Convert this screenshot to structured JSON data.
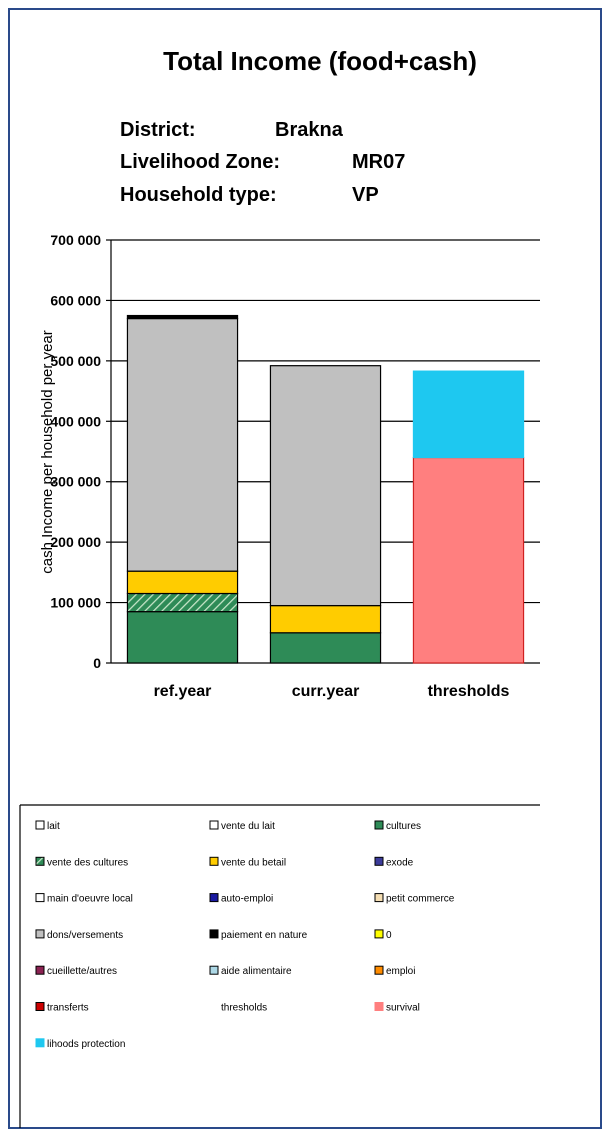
{
  "chart_data": {
    "type": "bar",
    "stacked": true,
    "title": "Total Income (food+cash)",
    "info": [
      {
        "label": "District:",
        "value": "Brakna"
      },
      {
        "label": "Livelihood Zone:",
        "value": "MR07"
      },
      {
        "label": "Household type:",
        "value": "VP"
      }
    ],
    "ylabel": "cash Income per household per year",
    "ylim": [
      0,
      700000
    ],
    "yticks": [
      0,
      100000,
      200000,
      300000,
      400000,
      500000,
      600000,
      700000
    ],
    "ytick_labels": [
      "0",
      "100 000",
      "200 000",
      "300 000",
      "400 000",
      "500 000",
      "600 000",
      "700 000"
    ],
    "grid": true,
    "categories": [
      "ref.year",
      "curr.year",
      "thresholds"
    ],
    "series": [
      {
        "name": "lait",
        "color": "#ffffff",
        "values": [
          0,
          0,
          0
        ]
      },
      {
        "name": "vente du lait",
        "color": "#ffffff",
        "values": [
          0,
          0,
          0
        ]
      },
      {
        "name": "cultures",
        "color": "#2e8b57",
        "values": [
          85000,
          50000,
          0
        ]
      },
      {
        "name": "vente des cultures",
        "color": "#2e8b57",
        "pattern": "hatch",
        "values": [
          30000,
          0,
          0
        ]
      },
      {
        "name": "vente du betail",
        "color": "#ffcc00",
        "values": [
          37000,
          45000,
          0
        ]
      },
      {
        "name": "exode",
        "color": "#3b3b9a",
        "values": [
          0,
          0,
          0
        ]
      },
      {
        "name": "main d'oeuvre local",
        "color": "#ffffff",
        "values": [
          0,
          0,
          0
        ]
      },
      {
        "name": "auto-emploi",
        "color": "#1a1aa0",
        "values": [
          0,
          0,
          0
        ]
      },
      {
        "name": "petit commerce",
        "color": "#f5deb3",
        "values": [
          0,
          0,
          0
        ]
      },
      {
        "name": "dons/versements",
        "color": "#c0c0c0",
        "values": [
          418000,
          397000,
          0
        ]
      },
      {
        "name": "paiement en nature",
        "color": "#000000",
        "values": [
          5000,
          0,
          0
        ]
      },
      {
        "name": "0",
        "color": "#ffff00",
        "values": [
          0,
          0,
          0
        ]
      },
      {
        "name": "cueillette/autres",
        "color": "#8b2252",
        "values": [
          0,
          0,
          0
        ]
      },
      {
        "name": "aide alimentaire",
        "color": "#add8e6",
        "values": [
          0,
          0,
          0
        ]
      },
      {
        "name": "emploi",
        "color": "#ff8c00",
        "values": [
          0,
          0,
          0
        ]
      },
      {
        "name": "transferts",
        "color": "#cc0000",
        "values": [
          0,
          0,
          0
        ]
      },
      {
        "name": "thresholds",
        "color": null,
        "values": [
          0,
          0,
          0
        ]
      },
      {
        "name": "survival",
        "color": "#ff7f7f",
        "values": [
          0,
          0,
          340000
        ]
      },
      {
        "name": "lihoods protection",
        "color": "#1ec8f0",
        "values": [
          0,
          0,
          143000
        ]
      }
    ]
  }
}
